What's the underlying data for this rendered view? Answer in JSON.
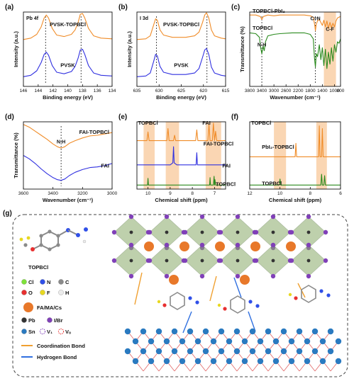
{
  "colors": {
    "orange": "#f08c28",
    "blue": "#3030e0",
    "green": "#2a8a1e",
    "red": "#e02020",
    "highlight": "#f8c89a"
  },
  "chart_data": [
    {
      "panel": "(a)",
      "type": "line",
      "corner_label": "Pb 4f",
      "xlabel": "Binding energy (eV)",
      "ylabel": "Intensity (a.u.)",
      "xlim": [
        146,
        134
      ],
      "xticks": [
        146,
        144,
        142,
        140,
        138,
        136,
        134
      ],
      "ylim": [
        0,
        10
      ],
      "peak_markers": [
        143.0,
        138.2
      ],
      "series": [
        {
          "name": "PVSK-TOPBCl",
          "color": "orange",
          "x": [
            146,
            145,
            144.2,
            143.6,
            143.2,
            142.9,
            142.6,
            142.1,
            141.5,
            140.5,
            139.5,
            139.0,
            138.6,
            138.3,
            138.0,
            137.7,
            137.2,
            136.5,
            135.5,
            134
          ],
          "y": [
            6.3,
            6.5,
            7.0,
            8.0,
            9.2,
            9.6,
            9.2,
            7.8,
            6.9,
            6.7,
            7.0,
            7.6,
            8.6,
            9.7,
            9.8,
            9.2,
            7.8,
            6.8,
            6.5,
            6.4
          ]
        },
        {
          "name": "PVSK",
          "color": "blue",
          "x": [
            146,
            145,
            144.2,
            143.6,
            143.2,
            142.9,
            142.6,
            142.1,
            141.5,
            140.5,
            139.5,
            139.0,
            138.6,
            138.3,
            138.0,
            137.7,
            137.2,
            136.5,
            135.5,
            134
          ],
          "y": [
            1.3,
            1.5,
            2.1,
            3.2,
            4.3,
            4.6,
            4.2,
            2.8,
            1.9,
            1.7,
            2.0,
            2.7,
            3.8,
            4.9,
            5.0,
            4.3,
            2.8,
            1.8,
            1.5,
            1.4
          ]
        }
      ]
    },
    {
      "panel": "(b)",
      "type": "line",
      "corner_label": "I 3d",
      "xlabel": "Binding energy (eV)",
      "ylabel": "Intensity (a.u.)",
      "xlim": [
        635,
        615
      ],
      "xticks": [
        635,
        630,
        625,
        620,
        615
      ],
      "ylim": [
        0,
        10
      ],
      "peak_markers": [
        630.6,
        619.2
      ],
      "series": [
        {
          "name": "PVSK-TOPBCl",
          "color": "orange",
          "x": [
            635,
            633,
            632,
            631.2,
            630.8,
            630.4,
            629.8,
            629,
            627,
            624,
            622,
            621,
            620.2,
            619.7,
            619.3,
            618.8,
            618.2,
            617.5,
            616,
            615
          ],
          "y": [
            6.3,
            6.4,
            6.8,
            8.3,
            9.1,
            8.9,
            7.6,
            6.9,
            6.6,
            6.6,
            6.8,
            7.3,
            8.6,
            9.6,
            9.9,
            9.2,
            7.6,
            6.8,
            6.5,
            6.4
          ]
        },
        {
          "name": "PVSK",
          "color": "blue",
          "x": [
            635,
            633,
            632,
            631.2,
            630.8,
            630.4,
            629.8,
            629,
            627,
            624,
            622,
            621,
            620.2,
            619.7,
            619.3,
            618.8,
            618.2,
            617.5,
            616,
            615
          ],
          "y": [
            1.3,
            1.4,
            1.8,
            3.4,
            4.3,
            4.1,
            2.7,
            1.9,
            1.6,
            1.6,
            1.8,
            2.4,
            3.9,
            4.9,
            5.1,
            4.3,
            2.6,
            1.8,
            1.5,
            1.4
          ]
        }
      ]
    },
    {
      "panel": "(c)",
      "type": "line",
      "xlabel": "Wavenumber (cm⁻¹)",
      "ylabel": "Transmittance (%)",
      "xlim": [
        3800,
        800
      ],
      "xticks": [
        3800,
        3400,
        3000,
        2600,
        2200,
        1800,
        1400,
        1000,
        800
      ],
      "xticklabels": [
        "3800",
        "3400",
        "3000",
        "2600",
        "2200",
        "1800",
        "1400",
        "1000",
        "800"
      ],
      "ylim": [
        0,
        10
      ],
      "highlight_x": [
        1350,
        950
      ],
      "peak_markers": [
        3400,
        1630
      ],
      "annotations": [
        {
          "text": "N-H",
          "x": 3400,
          "y": 5.4
        },
        {
          "text": "C=N",
          "x": 1630,
          "y": 8.9
        },
        {
          "text": "C-F",
          "x": 1150,
          "y": 7.5
        }
      ],
      "series": [
        {
          "name": "TOPBCl-PbI₂",
          "color": "orange",
          "x": [
            3800,
            3600,
            3450,
            3400,
            3350,
            3200,
            3000,
            2800,
            2400,
            2000,
            1800,
            1700,
            1650,
            1630,
            1600,
            1560,
            1500,
            1450,
            1400,
            1350,
            1300,
            1250,
            1200,
            1150,
            1100,
            1050,
            1000,
            950,
            900,
            850,
            800
          ],
          "y": [
            9.6,
            9.6,
            9.4,
            9.0,
            9.4,
            9.6,
            9.5,
            9.6,
            9.6,
            9.6,
            9.5,
            9.3,
            8.2,
            7.5,
            8.4,
            8.8,
            9.0,
            8.6,
            8.2,
            8.9,
            8.0,
            8.8,
            7.8,
            8.6,
            7.9,
            8.5,
            8.0,
            8.8,
            9.2,
            9.3,
            9.4
          ]
        },
        {
          "name": "TOPBCl",
          "color": "green",
          "x": [
            3800,
            3600,
            3480,
            3440,
            3400,
            3360,
            3320,
            3280,
            3200,
            3000,
            2800,
            2400,
            2000,
            1800,
            1700,
            1660,
            1630,
            1600,
            1560,
            1500,
            1450,
            1400,
            1350,
            1300,
            1250,
            1200,
            1150,
            1100,
            1050,
            1000,
            950,
            900,
            850,
            800
          ],
          "y": [
            7.2,
            7.1,
            6.6,
            5.2,
            4.4,
            5.4,
            4.8,
            6.0,
            6.8,
            7.0,
            7.1,
            7.2,
            7.2,
            7.0,
            6.4,
            3.8,
            2.6,
            4.4,
            4.0,
            5.6,
            3.6,
            5.2,
            2.8,
            5.0,
            2.4,
            4.6,
            3.0,
            5.2,
            3.4,
            5.6,
            4.6,
            6.0,
            5.8,
            6.4
          ]
        }
      ]
    },
    {
      "panel": "(d)",
      "type": "line",
      "xlabel": "Wavenumber (cm⁻¹)",
      "ylabel": "Transmittance (%)",
      "xlim": [
        3600,
        3000
      ],
      "xticks": [
        3600,
        3400,
        3200,
        3000
      ],
      "ylim": [
        0,
        10
      ],
      "peak_markers": [
        3345
      ],
      "annotations": [
        {
          "text": "N-H",
          "x": 3345,
          "y": 6.8
        }
      ],
      "series": [
        {
          "name": "FAI-TOPBCl",
          "color": "orange",
          "x": [
            3600,
            3560,
            3520,
            3480,
            3440,
            3400,
            3370,
            3345,
            3320,
            3290,
            3250,
            3200,
            3150,
            3100,
            3050,
            3000
          ],
          "y": [
            9.6,
            9.2,
            8.6,
            8.0,
            7.4,
            6.7,
            6.3,
            6.1,
            6.3,
            6.8,
            7.2,
            7.6,
            7.9,
            8.0,
            8.2,
            8.4
          ]
        },
        {
          "name": "FAI",
          "color": "blue",
          "x": [
            3600,
            3560,
            3520,
            3480,
            3440,
            3400,
            3370,
            3345,
            3320,
            3290,
            3250,
            3200,
            3150,
            3100,
            3050,
            3000
          ],
          "y": [
            5.0,
            4.5,
            3.8,
            3.0,
            2.3,
            1.7,
            1.4,
            1.3,
            1.5,
            2.0,
            2.5,
            2.9,
            3.2,
            3.3,
            3.5,
            3.8
          ]
        }
      ]
    },
    {
      "panel": "(e)",
      "type": "line",
      "xlabel": "Chemical shift (ppm)",
      "xlim": [
        10.5,
        6.5
      ],
      "xticks": [
        10,
        9,
        8,
        7
      ],
      "ylim": [
        0,
        10
      ],
      "highlight_x": [
        [
          10.2,
          9.7
        ],
        [
          9.2,
          8.6
        ],
        [
          7.4,
          6.7
        ]
      ],
      "labels": [
        {
          "text": "TOPBCl",
          "color": "red",
          "x": 10.45,
          "y": 9.6
        },
        {
          "text": "FAI",
          "color": "red",
          "x": 7.55,
          "y": 9.6
        },
        {
          "text": "FAI-TOPBCl",
          "color": "orange",
          "x": 7.5,
          "y": 6.5
        },
        {
          "text": "FAI",
          "color": "blue",
          "x": 6.65,
          "y": 3.2
        },
        {
          "text": "TOPBCl",
          "color": "green",
          "x": 6.95,
          "y": 0.5
        }
      ],
      "series": [
        {
          "name": "FAI-TOPBCl",
          "color": "orange",
          "x": [
            10.5,
            10.05,
            10.0,
            9.95,
            9.6,
            9.15,
            9.1,
            9.05,
            8.85,
            8.8,
            8.75,
            8.2,
            7.85,
            7.8,
            7.75,
            7.3,
            7.25,
            7.2,
            7.1,
            7.05,
            7.0,
            6.95,
            6.9,
            6.5
          ],
          "y": [
            7.2,
            7.2,
            8.5,
            7.2,
            7.2,
            7.2,
            9.0,
            7.2,
            7.2,
            8.0,
            7.2,
            7.2,
            7.2,
            8.8,
            7.2,
            7.2,
            9.6,
            7.2,
            7.2,
            9.8,
            7.2,
            8.6,
            7.2,
            7.2
          ]
        },
        {
          "name": "FAI",
          "color": "blue",
          "x": [
            10.5,
            9.0,
            8.88,
            8.85,
            8.82,
            8.7,
            7.83,
            7.8,
            7.77,
            6.5
          ],
          "y": [
            3.6,
            3.6,
            3.9,
            6.3,
            3.9,
            3.6,
            3.6,
            5.4,
            3.6,
            3.6
          ]
        },
        {
          "name": "TOPBCl",
          "color": "green",
          "x": [
            10.5,
            10.02,
            10.0,
            9.98,
            7.4,
            7.22,
            7.2,
            7.18,
            7.05,
            7.02,
            7.0,
            6.98,
            6.95,
            6.5
          ],
          "y": [
            0.6,
            0.6,
            1.6,
            0.6,
            0.6,
            0.6,
            1.7,
            0.6,
            0.6,
            1.9,
            0.6,
            1.4,
            0.6,
            0.6
          ]
        }
      ]
    },
    {
      "panel": "(f)",
      "type": "line",
      "xlabel": "Chemical shift (ppm)",
      "xlim": [
        12,
        6
      ],
      "xticks": [
        12,
        10,
        8,
        6
      ],
      "ylim": [
        0,
        10
      ],
      "highlight_x": [
        [
          10.4,
          9.6
        ],
        [
          7.6,
          6.9
        ]
      ],
      "labels": [
        {
          "text": "TOPBCl",
          "color": "red",
          "x": 11.9,
          "y": 9.6
        },
        {
          "text": "PbI₂-TOPBCl",
          "color": "orange",
          "x": 11.2,
          "y": 6.0
        },
        {
          "text": "TOPBCl",
          "color": "green",
          "x": 11.2,
          "y": 0.6
        }
      ],
      "series": [
        {
          "name": "PbI₂-TOPBCl",
          "color": "orange",
          "x": [
            12,
            9.0,
            8.95,
            8.9,
            7.45,
            7.4,
            7.35,
            7.25,
            7.2,
            7.15,
            6
          ],
          "y": [
            4.8,
            4.8,
            6.8,
            4.8,
            4.8,
            9.4,
            4.8,
            4.8,
            9.0,
            4.8,
            4.8
          ]
        },
        {
          "name": "TOPBCl",
          "color": "green",
          "x": [
            12,
            10.05,
            10.0,
            9.95,
            7.3,
            7.25,
            7.2,
            7.1,
            7.05,
            7.0,
            6
          ],
          "y": [
            0.6,
            0.6,
            1.5,
            0.6,
            0.6,
            2.2,
            0.6,
            0.6,
            2.0,
            0.6,
            0.6
          ]
        }
      ]
    }
  ],
  "panel_g": {
    "label": "(g)",
    "molecule_name": "TOPBCl",
    "elements_row1": [
      {
        "symbol": "Cl",
        "color": "#7ee23a"
      },
      {
        "symbol": "N",
        "color": "#3050e8"
      },
      {
        "symbol": "C",
        "color": "#8a8a8a"
      }
    ],
    "elements_row2": [
      {
        "symbol": "O",
        "color": "#e83030"
      },
      {
        "symbol": "F",
        "color": "#e8d820"
      },
      {
        "symbol": "H",
        "color": "#ececec"
      }
    ],
    "cations": {
      "symbol": "FA/MA/Cs",
      "color": "#e8782a"
    },
    "elements_row3": [
      {
        "symbol": "Pb",
        "color": "#333333"
      },
      {
        "symbol": "I/Br",
        "color": "#8040b8"
      }
    ],
    "elements_row4": [
      {
        "symbol": "Sn",
        "color": "#2a7ac0"
      },
      {
        "symbol": "V₁",
        "color": "#8040b8",
        "dashed": true
      },
      {
        "symbol": "Vₒ",
        "color": "#e83030",
        "dashed": true
      }
    ],
    "bonds": [
      {
        "label": "Coordination Bond",
        "color": "#f0a030"
      },
      {
        "label": "Hydrogen Bond",
        "color": "#3070e0"
      }
    ]
  }
}
